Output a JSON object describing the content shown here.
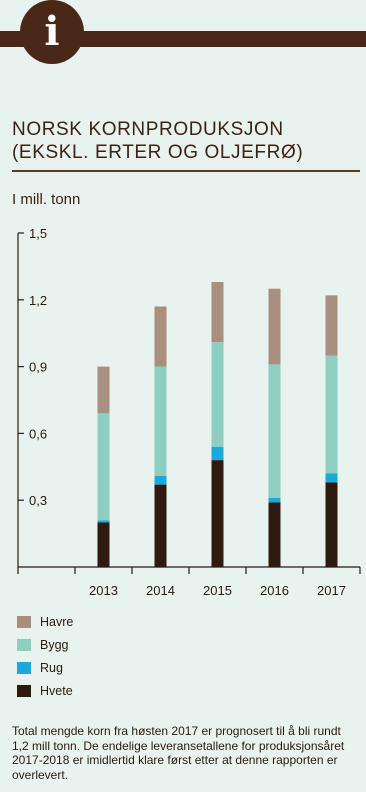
{
  "header": {
    "icon_glyph": "i",
    "icon_name": "info-icon"
  },
  "title_line1": "NORSK KORNPRODUKSJON",
  "title_line2": "(EKSKL. ERTER OG OLJEFRØ)",
  "unit_label": "I mill. tonn",
  "colors": {
    "background": "#e8f2ee",
    "brand_dark": "#4a2818",
    "havre": "#a98f7f",
    "bygg": "#8fcfc1",
    "rug": "#1ba9d9",
    "hvete": "#2e1a10"
  },
  "chart_data": {
    "type": "bar",
    "stacked": true,
    "categories": [
      "",
      "2013",
      "2014",
      "2015",
      "2016",
      "2017"
    ],
    "ylim": [
      0,
      1.5
    ],
    "yticks": [
      "0,3",
      "0,6",
      "0,9",
      "1,2",
      "1,5"
    ],
    "ytick_values": [
      0.3,
      0.6,
      0.9,
      1.2,
      1.5
    ],
    "series": [
      {
        "name": "Hvete",
        "color": "#2e1a10",
        "values": [
          0,
          0.2,
          0.37,
          0.48,
          0.29,
          0.38
        ]
      },
      {
        "name": "Rug",
        "color": "#1ba9d9",
        "values": [
          0,
          0.01,
          0.04,
          0.06,
          0.02,
          0.04
        ]
      },
      {
        "name": "Bygg",
        "color": "#8fcfc1",
        "values": [
          0,
          0.48,
          0.49,
          0.47,
          0.6,
          0.53
        ]
      },
      {
        "name": "Havre",
        "color": "#a98f7f",
        "values": [
          0,
          0.21,
          0.27,
          0.27,
          0.34,
          0.27
        ]
      }
    ],
    "legend_order": [
      "Havre",
      "Bygg",
      "Rug",
      "Hvete"
    ],
    "legend_position": "bottom-left",
    "grid": false
  },
  "footnote": "Total mengde korn fra høsten 2017 er prognosert til å bli rundt 1,2 mill tonn. De endelige leveransetallene for produksjonsåret 2017-2018 er imidlertid klare først etter at denne rapporten er overlevert."
}
